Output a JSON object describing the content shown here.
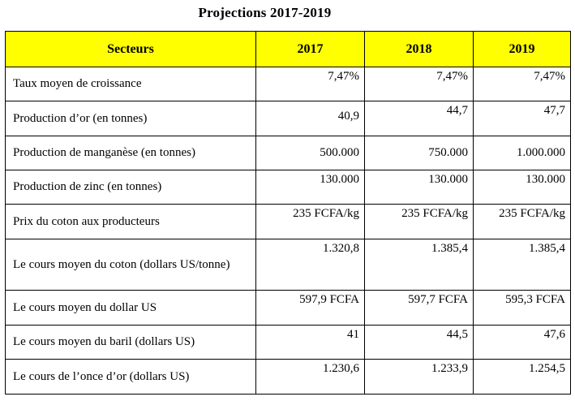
{
  "title": "Projections 2017-2019",
  "table": {
    "headers": [
      "Secteurs",
      "2017",
      "2018",
      "2019"
    ],
    "rows": [
      {
        "label": "Taux moyen de croissance",
        "values": [
          "7,47%",
          "7,47%",
          "7,47%"
        ]
      },
      {
        "label": "Production d’or (en tonnes)",
        "values": [
          "40,9",
          "44,7",
          "47,7"
        ]
      },
      {
        "label": "Production de manganèse (en tonnes)",
        "values": [
          "500.000",
          "750.000",
          "1.000.000"
        ]
      },
      {
        "label": "Production de zinc (en tonnes)",
        "values": [
          "130.000",
          "130.000",
          "130.000"
        ]
      },
      {
        "label": "Prix du coton aux producteurs",
        "values": [
          "235 FCFA/kg",
          "235 FCFA/kg",
          "235 FCFA/kg"
        ]
      },
      {
        "label": "Le cours moyen du coton (dollars US/tonne)",
        "values": [
          "1.320,8",
          "1.385,4",
          "1.385,4"
        ]
      },
      {
        "label": "Le cours moyen du dollar US",
        "values": [
          "597,9 FCFA",
          "597,7 FCFA",
          "595,3 FCFA"
        ]
      },
      {
        "label": "Le cours moyen du baril (dollars US)",
        "values": [
          "41",
          "44,5",
          "47,6"
        ]
      },
      {
        "label": "Le cours de l’once d’or (dollars US)",
        "values": [
          "1.230,6",
          "1.233,9",
          "1.254,5"
        ]
      }
    ]
  }
}
